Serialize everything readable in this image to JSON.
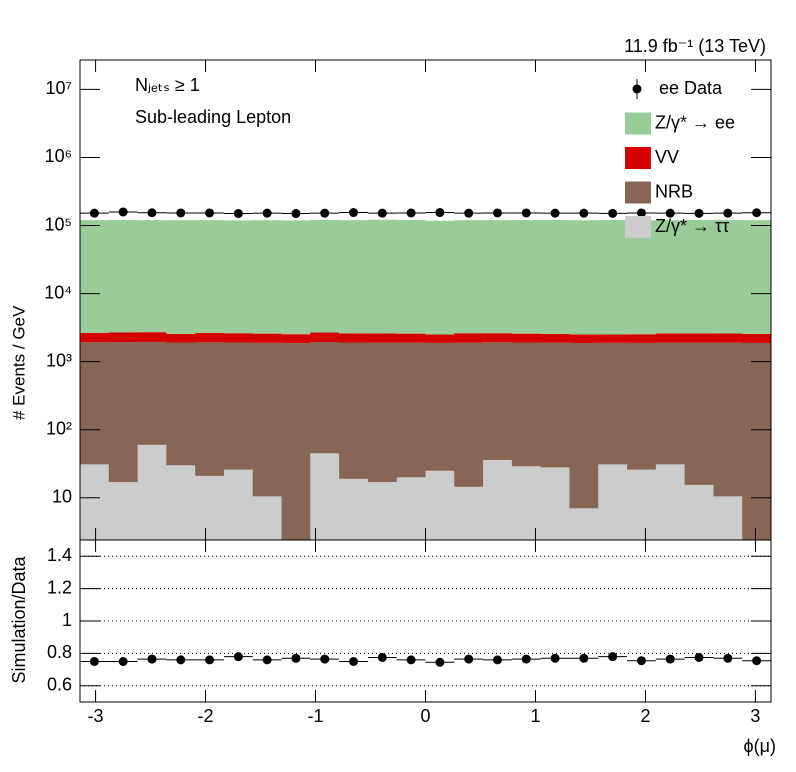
{
  "chart_data": [
    {
      "type": "histogram",
      "luminosity": "11.9 fb⁻¹ (13 TeV)",
      "annotations": [
        "Nⱼₑₜₛ ≥ 1",
        "Sub-leading Lepton"
      ],
      "ylabel": "# Events / GeV",
      "log_y": true,
      "xlim": [
        -3.1416,
        3.1416
      ],
      "ylim": [
        2.4,
        27000000
      ],
      "yticks": [
        10,
        {
          "value": 100,
          "label": "10²"
        },
        {
          "value": 1000,
          "label": "10³"
        },
        {
          "value": 10000,
          "label": "10⁴"
        },
        {
          "value": 100000,
          "label": "10⁵"
        },
        {
          "value": 1000000,
          "label": "10⁶"
        },
        {
          "value": 10000000,
          "label": "10⁷"
        }
      ],
      "bins": [
        -3.1416,
        -2.8798,
        -2.618,
        -2.3562,
        -2.0944,
        -1.8326,
        -1.5708,
        -1.309,
        -1.0472,
        -0.7854,
        -0.5236,
        -0.2618,
        0,
        0.2618,
        0.5236,
        0.7854,
        1.0472,
        1.309,
        1.5708,
        1.8326,
        2.0944,
        2.3562,
        2.618,
        2.8798,
        3.1416
      ],
      "legend": "upper right",
      "series": [
        {
          "name": "Z/γ* → ττ",
          "color": "#cccccc",
          "values": [
            31,
            17,
            60,
            30,
            21,
            26,
            10.5,
            2,
            45,
            19,
            17,
            20,
            25,
            14.5,
            36,
            29,
            28,
            7,
            31,
            26,
            31,
            15.5,
            10.5,
            2
          ]
        },
        {
          "name": "NRB",
          "color": "#886655",
          "values": [
            1900,
            1920,
            1890,
            1880,
            1900,
            1890,
            1880,
            1870,
            1900,
            1890,
            1880,
            1880,
            1860,
            1880,
            1890,
            1880,
            1870,
            1870,
            1860,
            1860,
            1870,
            1880,
            1890,
            1880
          ]
        },
        {
          "name": "VV",
          "color": "#d40000",
          "values": [
            720,
            760,
            760,
            650,
            720,
            700,
            690,
            660,
            740,
            700,
            700,
            680,
            620,
            720,
            690,
            670,
            660,
            640,
            620,
            640,
            700,
            700,
            690,
            680
          ]
        },
        {
          "name": "Z/γ* → ee",
          "color": "#99cc99",
          "values": [
            117000,
            118000,
            117000,
            117000,
            117000,
            116000,
            117000,
            116000,
            118000,
            117000,
            119000,
            118000,
            115000,
            117000,
            117000,
            118000,
            118000,
            117000,
            118000,
            116000,
            117000,
            118000,
            118000,
            117000
          ]
        }
      ],
      "data": {
        "name": "ee Data",
        "color": "#000000",
        "values": [
          152000,
          158000,
          154000,
          153000,
          153000,
          150000,
          152000,
          150000,
          152000,
          155000,
          152000,
          153000,
          155000,
          152000,
          153000,
          153000,
          152000,
          152000,
          151000,
          153000,
          152000,
          151000,
          152000,
          154000
        ]
      }
    },
    {
      "type": "ratio",
      "ylabel": "Simulation/Data",
      "xlabel": "ϕ(μ)",
      "xlim": [
        -3.1416,
        3.1416
      ],
      "xticks": [
        -3,
        -2,
        -1,
        0,
        1,
        2,
        3
      ],
      "ylim": [
        0.5,
        1.5
      ],
      "yticks": [
        0.6,
        0.8,
        1,
        1.2,
        1.4
      ],
      "grid": true,
      "color": "#000000",
      "values": [
        0.75,
        0.75,
        0.765,
        0.76,
        0.76,
        0.78,
        0.76,
        0.77,
        0.765,
        0.75,
        0.775,
        0.76,
        0.745,
        0.765,
        0.76,
        0.765,
        0.77,
        0.77,
        0.78,
        0.755,
        0.765,
        0.775,
        0.77,
        0.755
      ]
    }
  ]
}
